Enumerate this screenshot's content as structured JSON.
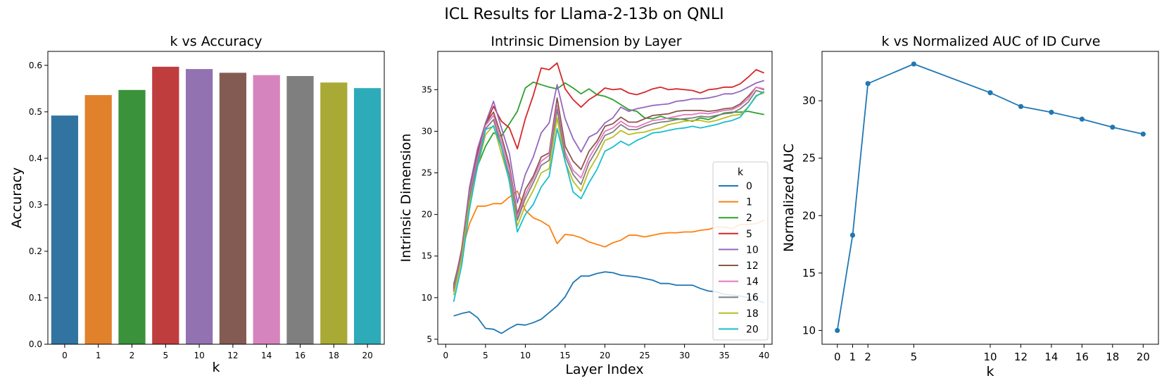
{
  "figure": {
    "suptitle": "ICL Results for Llama-2-13b on QNLI"
  },
  "chart_data": [
    {
      "type": "bar",
      "title": "k vs Accuracy",
      "xlabel": "k",
      "ylabel": "Accuracy",
      "categories": [
        "0",
        "1",
        "2",
        "5",
        "10",
        "12",
        "14",
        "16",
        "18",
        "20"
      ],
      "values": [
        0.492,
        0.536,
        0.547,
        0.597,
        0.592,
        0.584,
        0.579,
        0.577,
        0.563,
        0.551
      ],
      "colors": [
        "#3274a1",
        "#e1812c",
        "#3a923a",
        "#c03d3e",
        "#9372b2",
        "#845b53",
        "#d684bd",
        "#7f7f7f",
        "#a9aa35",
        "#2eabb8"
      ],
      "ylim": [
        0,
        0.63
      ],
      "yticks": [
        0.0,
        0.1,
        0.2,
        0.3,
        0.4,
        0.5,
        0.6
      ],
      "ytick_labels": [
        "0.0",
        "0.1",
        "0.2",
        "0.3",
        "0.4",
        "0.5",
        "0.6"
      ]
    },
    {
      "type": "line",
      "title": "Intrinsic Dimension by Layer",
      "xlabel": "Layer Index",
      "ylabel": "Intrinsic Dimension",
      "xlim": [
        -1,
        41
      ],
      "ylim": [
        4.4,
        39.6
      ],
      "xticks": [
        0,
        5,
        10,
        15,
        20,
        25,
        30,
        35,
        40
      ],
      "xtick_labels": [
        "0",
        "5",
        "10",
        "15",
        "20",
        "25",
        "30",
        "35",
        "40"
      ],
      "yticks": [
        5,
        10,
        15,
        20,
        25,
        30,
        35
      ],
      "ytick_labels": [
        "5",
        "10",
        "15",
        "20",
        "25",
        "30",
        "35"
      ],
      "legend": {
        "title": "k",
        "location": "lower-right"
      },
      "x": [
        1,
        2,
        3,
        4,
        5,
        6,
        7,
        8,
        9,
        10,
        11,
        12,
        13,
        14,
        15,
        16,
        17,
        18,
        19,
        20,
        21,
        22,
        23,
        24,
        25,
        26,
        27,
        28,
        29,
        30,
        31,
        32,
        33,
        34,
        35,
        36,
        37,
        38,
        39,
        40
      ],
      "series": [
        {
          "name": "0",
          "color": "#1f77b4",
          "values": [
            7.8,
            8.1,
            8.3,
            7.6,
            6.3,
            6.2,
            5.7,
            6.3,
            6.8,
            6.7,
            7.0,
            7.4,
            8.2,
            9.0,
            10.1,
            11.8,
            12.6,
            12.6,
            12.9,
            13.1,
            13.0,
            12.7,
            12.6,
            12.5,
            12.3,
            12.1,
            11.7,
            11.7,
            11.5,
            11.5,
            11.5,
            11.1,
            10.8,
            10.7,
            10.4,
            10.3,
            10.2,
            10.0,
            9.7,
            9.4
          ]
        },
        {
          "name": "1",
          "color": "#ff7f0e",
          "values": [
            11.0,
            15.5,
            18.9,
            21.0,
            21.0,
            21.3,
            21.3,
            22.1,
            22.8,
            20.5,
            19.6,
            19.2,
            18.6,
            16.5,
            17.6,
            17.5,
            17.2,
            16.7,
            16.4,
            16.1,
            16.6,
            16.9,
            17.5,
            17.5,
            17.3,
            17.5,
            17.7,
            17.8,
            17.8,
            17.9,
            17.9,
            18.1,
            18.2,
            18.5,
            18.5,
            18.3,
            18.8,
            18.8,
            18.9,
            19.3
          ]
        },
        {
          "name": "2",
          "color": "#2ca02c",
          "values": [
            11.6,
            15.4,
            22.0,
            25.8,
            28.2,
            29.8,
            29.4,
            30.9,
            32.4,
            35.2,
            35.9,
            35.6,
            35.3,
            35.1,
            35.8,
            35.2,
            34.5,
            35.1,
            34.4,
            34.2,
            33.8,
            33.2,
            32.6,
            32.4,
            31.6,
            31.5,
            31.8,
            31.5,
            31.5,
            31.4,
            31.2,
            31.6,
            31.4,
            31.8,
            32.2,
            32.3,
            32.3,
            32.4,
            32.2,
            32.0
          ]
        },
        {
          "name": "5",
          "color": "#d62728",
          "values": [
            11.2,
            15.8,
            23.0,
            27.5,
            30.8,
            33.0,
            31.2,
            30.4,
            27.9,
            31.5,
            34.3,
            37.6,
            37.4,
            38.2,
            35.1,
            33.8,
            32.9,
            33.8,
            34.4,
            35.2,
            35.0,
            35.1,
            34.6,
            34.4,
            34.7,
            35.1,
            35.3,
            35.0,
            35.1,
            35.0,
            34.9,
            34.6,
            35.0,
            35.1,
            35.3,
            35.3,
            35.7,
            36.5,
            37.4,
            37.0
          ]
        },
        {
          "name": "10",
          "color": "#9467bd",
          "values": [
            11.4,
            15.6,
            23.3,
            27.9,
            31.0,
            33.6,
            30.4,
            27.3,
            21.4,
            24.8,
            26.9,
            29.8,
            31.0,
            35.6,
            31.5,
            29.1,
            27.5,
            29.3,
            29.8,
            31.0,
            31.6,
            32.9,
            32.4,
            32.7,
            32.9,
            33.1,
            33.2,
            33.3,
            33.6,
            33.7,
            33.9,
            33.9,
            34.0,
            34.2,
            34.5,
            34.5,
            34.8,
            35.3,
            35.8,
            36.1
          ]
        },
        {
          "name": "12",
          "color": "#8c564b",
          "values": [
            11.1,
            15.5,
            22.8,
            27.0,
            30.9,
            32.3,
            29.4,
            25.9,
            20.1,
            23.0,
            24.6,
            26.9,
            27.4,
            34.0,
            28.2,
            26.4,
            25.4,
            27.6,
            28.8,
            30.6,
            30.9,
            31.7,
            31.1,
            31.1,
            31.5,
            31.9,
            32.0,
            32.1,
            32.4,
            32.5,
            32.5,
            32.5,
            32.4,
            32.5,
            32.7,
            32.8,
            33.3,
            34.2,
            35.3,
            35.0
          ]
        },
        {
          "name": "14",
          "color": "#e377c2",
          "values": [
            10.9,
            15.2,
            22.5,
            26.7,
            30.7,
            31.9,
            28.7,
            25.4,
            19.7,
            22.4,
            24.3,
            26.4,
            27.1,
            33.1,
            27.5,
            25.3,
            24.4,
            26.8,
            28.4,
            30.0,
            30.4,
            31.2,
            30.6,
            30.5,
            30.9,
            31.3,
            31.4,
            31.6,
            31.8,
            32.0,
            32.0,
            32.2,
            32.1,
            32.3,
            32.5,
            32.6,
            33.1,
            33.9,
            35.3,
            35.1
          ]
        },
        {
          "name": "16",
          "color": "#7f7f7f",
          "values": [
            10.7,
            15.0,
            22.1,
            26.2,
            30.3,
            31.4,
            28.1,
            24.7,
            19.3,
            21.9,
            23.8,
            25.9,
            26.5,
            32.6,
            27.0,
            24.8,
            23.6,
            26.2,
            27.8,
            29.5,
            29.9,
            30.8,
            30.2,
            30.2,
            30.6,
            30.9,
            31.1,
            31.2,
            31.4,
            31.5,
            31.6,
            31.8,
            31.7,
            31.9,
            32.1,
            32.2,
            32.7,
            33.5,
            34.9,
            34.6
          ]
        },
        {
          "name": "18",
          "color": "#bcbd22",
          "values": [
            10.3,
            14.6,
            21.4,
            25.7,
            29.6,
            30.7,
            27.3,
            24.1,
            18.6,
            21.1,
            22.9,
            25.0,
            25.5,
            31.6,
            26.3,
            24.0,
            22.8,
            25.3,
            26.9,
            28.9,
            29.3,
            30.1,
            29.6,
            29.8,
            29.9,
            30.2,
            30.4,
            30.8,
            31.0,
            31.2,
            31.3,
            31.3,
            31.1,
            31.3,
            31.6,
            31.9,
            32.0,
            32.9,
            34.3,
            34.6
          ]
        },
        {
          "name": "20",
          "color": "#17becf",
          "values": [
            9.5,
            13.8,
            20.7,
            25.8,
            30.2,
            30.6,
            28.1,
            23.9,
            17.9,
            20.0,
            21.2,
            23.3,
            24.6,
            30.3,
            26.4,
            22.7,
            21.9,
            23.8,
            25.4,
            27.6,
            28.1,
            28.8,
            28.3,
            28.9,
            29.3,
            29.8,
            29.9,
            30.1,
            30.3,
            30.4,
            30.6,
            30.4,
            30.6,
            30.8,
            31.1,
            31.3,
            31.7,
            32.9,
            34.2,
            34.8
          ]
        }
      ]
    },
    {
      "type": "line",
      "title": "k vs Normalized AUC of ID Curve",
      "xlabel": "k",
      "ylabel": "Normalized AUC",
      "x": [
        0,
        1,
        2,
        5,
        10,
        12,
        14,
        16,
        18,
        20
      ],
      "values": [
        10.0,
        18.3,
        31.5,
        33.2,
        30.7,
        29.5,
        29.0,
        28.4,
        27.7,
        27.1
      ],
      "color": "#1f77b4",
      "xlim": [
        -1,
        21
      ],
      "ylim": [
        8.8,
        34.3
      ],
      "xticks": [
        0,
        1,
        2,
        5,
        10,
        12,
        14,
        16,
        18,
        20
      ],
      "xtick_labels": [
        "0",
        "1",
        "2",
        "5",
        "10",
        "12",
        "14",
        "16",
        "18",
        "20"
      ],
      "yticks": [
        10,
        15,
        20,
        25,
        30
      ],
      "ytick_labels": [
        "10",
        "15",
        "20",
        "25",
        "30"
      ]
    }
  ]
}
